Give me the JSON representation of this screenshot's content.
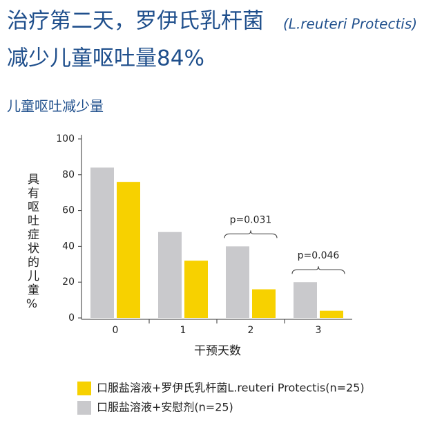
{
  "chart_data": {
    "type": "bar",
    "title": [
      "治疗第二天，罗伊氏乳杆菌",
      "(L.reuteri Protectis)",
      "减少儿童呕吐量84%"
    ],
    "subtitle": "儿童呕吐减少量",
    "y_label": "具有呕吐症状的儿童%",
    "x_label": "干预天数",
    "categories": [
      "0",
      "1",
      "2",
      "3"
    ],
    "series": [
      {
        "name": "口服盐溶液+安慰剂(n=25)",
        "color": "#c9c9cc",
        "values": [
          84,
          48,
          40,
          20
        ]
      },
      {
        "name": "口服盐溶液+罗伊氏乳杆菌L.reuteri Protectis(n=25)",
        "color": "#f7d100",
        "values": [
          76,
          32,
          16,
          4
        ]
      }
    ],
    "annotations": [
      "p=0.031",
      "p=0.046"
    ],
    "ylim": [
      0,
      100
    ],
    "yticks": [
      0,
      20,
      40,
      60,
      80,
      100
    ]
  }
}
